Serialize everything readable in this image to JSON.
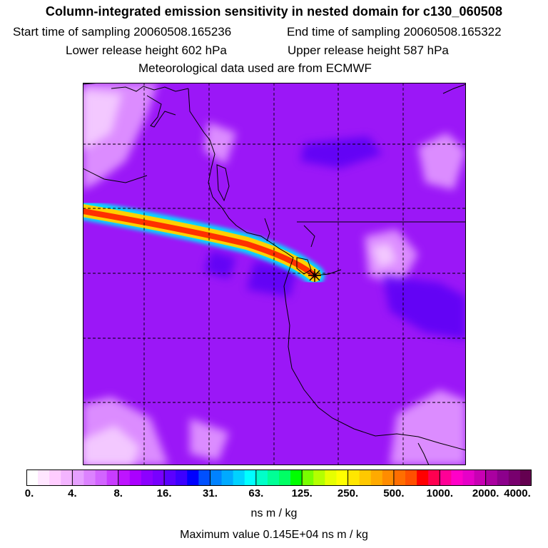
{
  "header": {
    "title": "Column-integrated emission sensitivity in nested domain for c130_060508",
    "start_time": "Start time of sampling 20060508.165236",
    "end_time": "End time of sampling 20060508.165322",
    "lower_height": "Lower release height  602 hPa",
    "upper_height": "Upper release height  587 hPa",
    "met_source": "Meteorological data used are from ECMWF"
  },
  "colorbar": {
    "tick_labels": [
      "0.",
      "4.",
      "8.",
      "16.",
      "31.",
      "63.",
      "125.",
      "250.",
      "500.",
      "1000.",
      "2000.",
      "4000."
    ],
    "colors": [
      "#ffffff",
      "#ffe6ff",
      "#ffcdff",
      "#f3b4ff",
      "#e6a0ff",
      "#dc82ff",
      "#d264ff",
      "#c83cff",
      "#be14ff",
      "#aa00ff",
      "#8c00ff",
      "#7800ff",
      "#5a00ff",
      "#3c00ff",
      "#0000ff",
      "#0050ff",
      "#0082ff",
      "#00aaff",
      "#00d2ff",
      "#00ffff",
      "#00ffc8",
      "#00ff96",
      "#00ff64",
      "#00ff00",
      "#78ff00",
      "#b4ff00",
      "#e6ff00",
      "#ffff00",
      "#ffe600",
      "#ffc800",
      "#ffaa00",
      "#ff8c00",
      "#ff6e00",
      "#ff5000",
      "#ff0000",
      "#ff0050",
      "#ff0096",
      "#ff00c8",
      "#e600c8",
      "#c800b4",
      "#aa00a0",
      "#8c008c",
      "#78006e",
      "#640050"
    ],
    "units": "ns m / kg",
    "max_value": "Maximum value  0.145E+04 ns m / kg"
  },
  "map": {
    "plume_peak_value": 1450,
    "colors": {
      "background": "#9b17f7",
      "low_patch": "#dc8cff",
      "lowest_patch": "#f3c8ff",
      "high_patch": "#5a06f5",
      "plume_edge": "#00e0ff",
      "plume_mid": "#ffd000",
      "plume_core": "#ff3000",
      "coastline": "#000000",
      "grid": "#000000"
    }
  }
}
